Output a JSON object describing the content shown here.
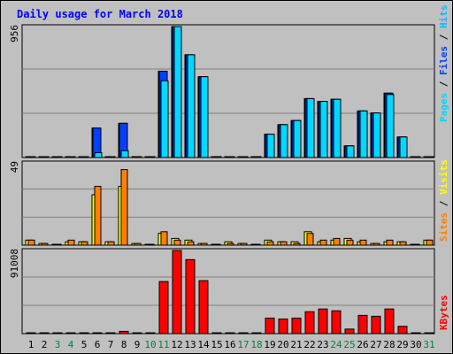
{
  "title": "Daily usage for March 2018",
  "colors": {
    "background": "#c0c0c0",
    "plot_bg": "#ffffff",
    "title": "#0000ff",
    "hits": "#00c0ff",
    "files": "#0040ff",
    "pages": "#00d8ff",
    "visits": "#ffff00",
    "sites": "#ff8000",
    "kbytes": "#ff0000",
    "weekday": "#000000",
    "weekend": "#008040"
  },
  "legend": {
    "pages": "Pages",
    "files": "Files",
    "hits": "Hits",
    "sites": "Sites",
    "visits": "Visits",
    "kbytes": "KBytes",
    "sep": " / "
  },
  "chart_data": [
    {
      "type": "bar",
      "panel": "hits-files-pages",
      "scale_max_label": "956",
      "ylim": [
        0,
        956
      ],
      "categories": [
        "1",
        "2",
        "3",
        "4",
        "5",
        "6",
        "7",
        "8",
        "9",
        "10",
        "11",
        "12",
        "13",
        "14",
        "15",
        "16",
        "17",
        "18",
        "19",
        "20",
        "21",
        "22",
        "23",
        "24",
        "25",
        "26",
        "27",
        "28",
        "29",
        "30",
        "31"
      ],
      "weekend_days": [
        3,
        4,
        10,
        11,
        17,
        18,
        24,
        25,
        31
      ],
      "series": [
        {
          "name": "Hits",
          "values": [
            5,
            5,
            5,
            5,
            5,
            215,
            5,
            250,
            5,
            5,
            630,
            956,
            750,
            590,
            5,
            5,
            5,
            5,
            170,
            240,
            270,
            430,
            410,
            425,
            85,
            340,
            325,
            470,
            150,
            5,
            5
          ]
        },
        {
          "name": "Files",
          "values": [
            5,
            5,
            5,
            5,
            5,
            215,
            5,
            250,
            5,
            5,
            630,
            956,
            750,
            590,
            5,
            5,
            5,
            5,
            170,
            240,
            270,
            430,
            410,
            425,
            85,
            340,
            325,
            470,
            150,
            5,
            5
          ]
        },
        {
          "name": "Pages",
          "values": [
            5,
            5,
            5,
            5,
            5,
            35,
            5,
            50,
            5,
            5,
            560,
            956,
            750,
            590,
            5,
            5,
            5,
            5,
            170,
            240,
            270,
            430,
            410,
            425,
            85,
            340,
            325,
            460,
            150,
            5,
            5
          ]
        }
      ]
    },
    {
      "type": "bar",
      "panel": "visits-sites",
      "scale_max_label": "49",
      "ylim": [
        0,
        49
      ],
      "categories": [
        "1",
        "2",
        "3",
        "4",
        "5",
        "6",
        "7",
        "8",
        "9",
        "10",
        "11",
        "12",
        "13",
        "14",
        "15",
        "16",
        "17",
        "18",
        "19",
        "20",
        "21",
        "22",
        "23",
        "24",
        "25",
        "26",
        "27",
        "28",
        "29",
        "30",
        "31"
      ],
      "series": [
        {
          "name": "Visits",
          "values": [
            3,
            1,
            0,
            2,
            2,
            30,
            2,
            35,
            1,
            0,
            7,
            4,
            3,
            1,
            0,
            2,
            1,
            0,
            3,
            2,
            2,
            8,
            2,
            3,
            4,
            2,
            1,
            2,
            2,
            0,
            3
          ]
        },
        {
          "name": "Sites",
          "values": [
            3,
            1,
            0,
            3,
            2,
            35,
            2,
            45,
            1,
            0,
            8,
            3,
            2,
            1,
            0,
            1,
            1,
            0,
            2,
            2,
            1,
            7,
            3,
            4,
            3,
            3,
            1,
            3,
            2,
            0,
            3
          ]
        }
      ]
    },
    {
      "type": "bar",
      "panel": "kbytes",
      "scale_max_label": "91008",
      "ylim": [
        0,
        91008
      ],
      "categories": [
        "1",
        "2",
        "3",
        "4",
        "5",
        "6",
        "7",
        "8",
        "9",
        "10",
        "11",
        "12",
        "13",
        "14",
        "15",
        "16",
        "17",
        "18",
        "19",
        "20",
        "21",
        "22",
        "23",
        "24",
        "25",
        "26",
        "27",
        "28",
        "29",
        "30",
        "31"
      ],
      "series": [
        {
          "name": "KBytes",
          "values": [
            800,
            800,
            800,
            800,
            800,
            800,
            800,
            2500,
            800,
            800,
            57000,
            91008,
            81000,
            58000,
            800,
            800,
            800,
            800,
            17000,
            16000,
            17000,
            24000,
            27000,
            25000,
            5000,
            20000,
            19000,
            27000,
            8000,
            800,
            800
          ]
        }
      ]
    }
  ]
}
